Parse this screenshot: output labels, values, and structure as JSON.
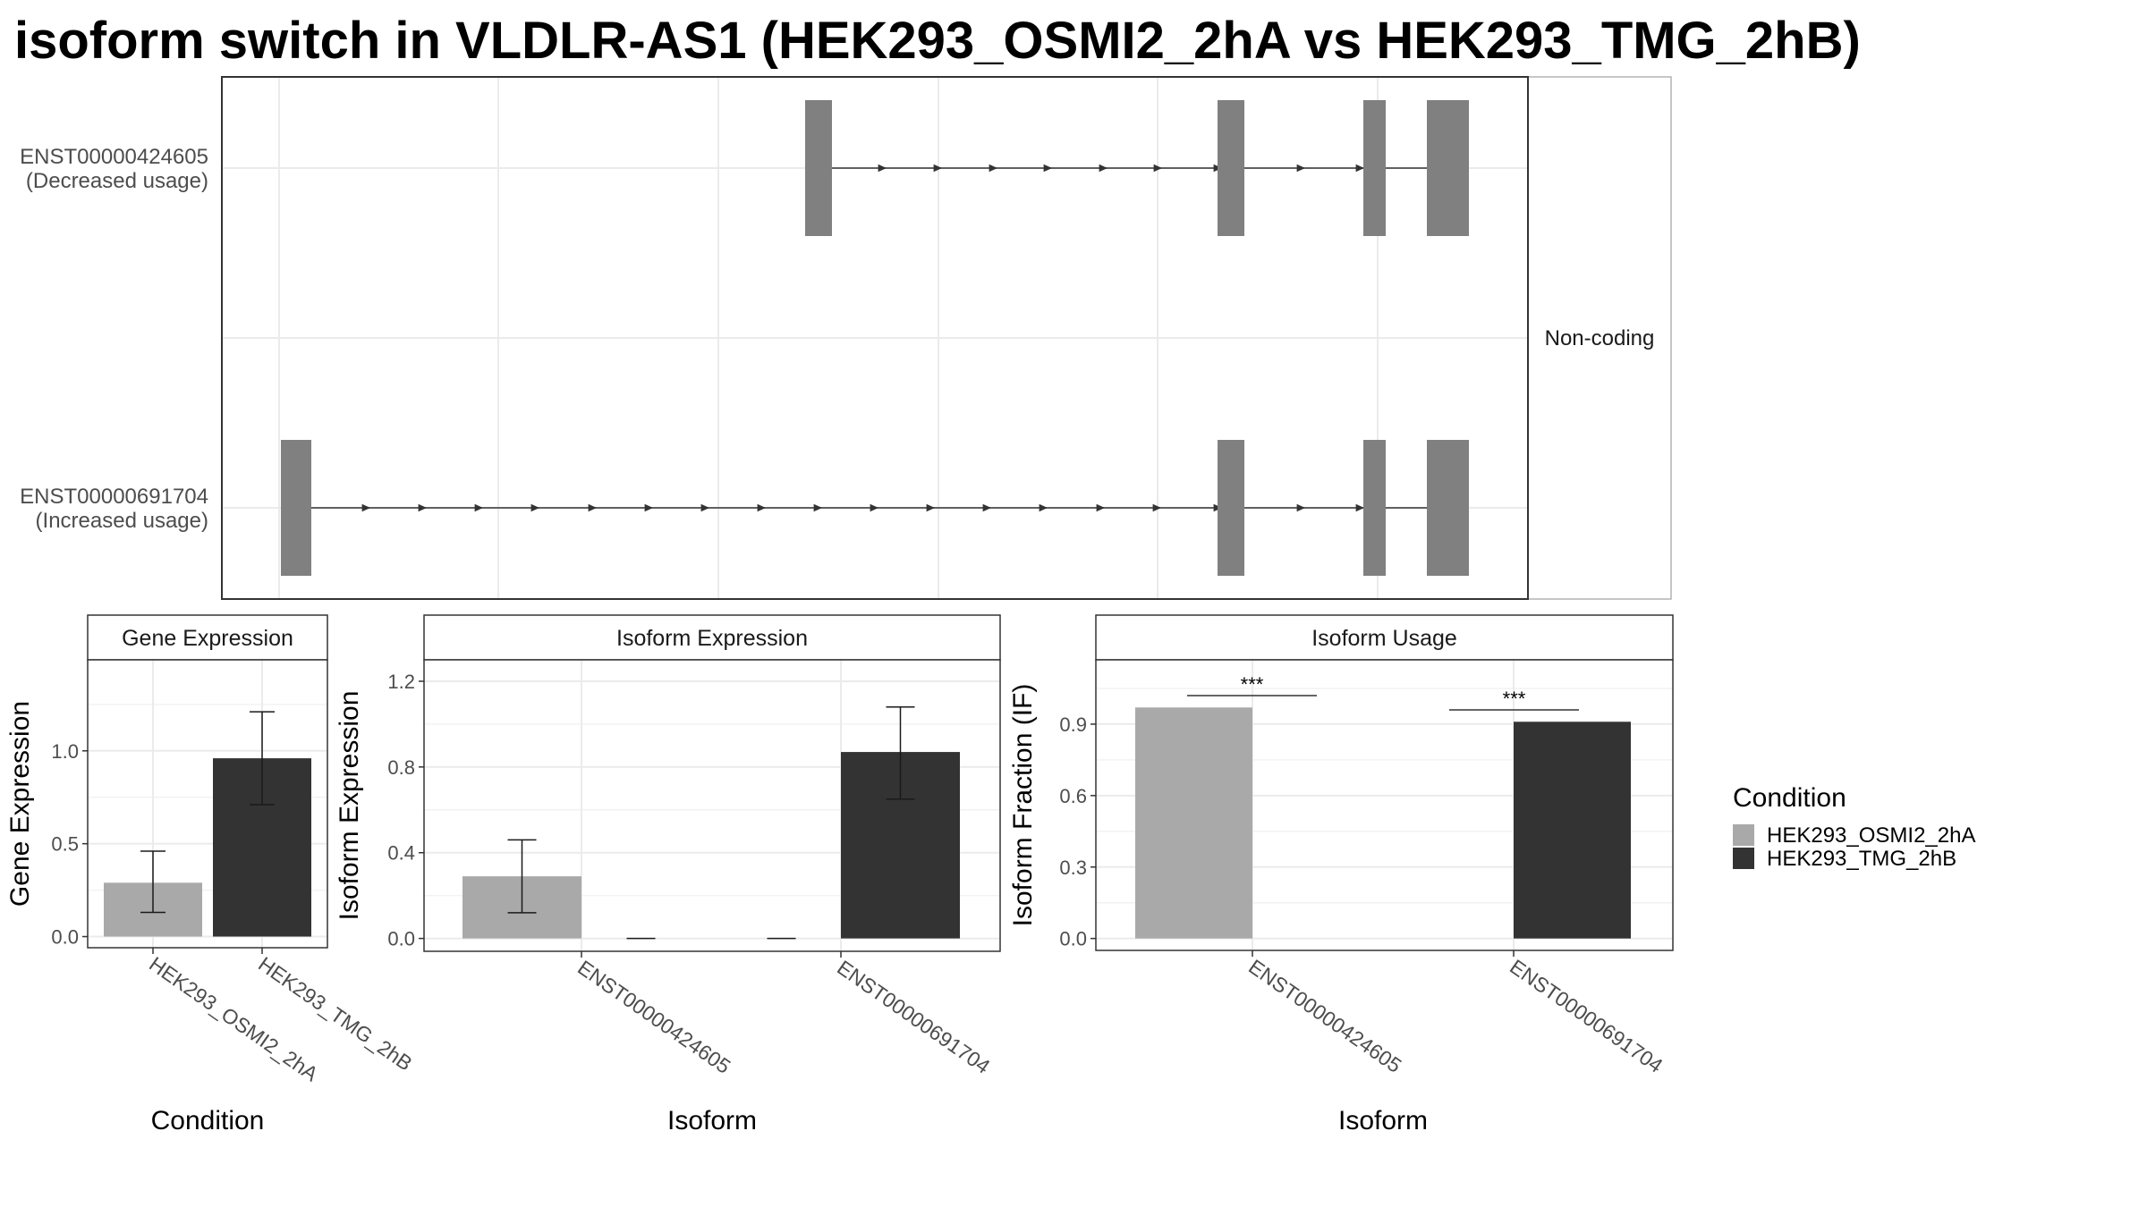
{
  "title": "isoform switch in VLDLR-AS1 (HEK293_OSMI2_2hA vs HEK293_TMG_2hB)",
  "colors": {
    "cond_a": "#a9a9a9",
    "cond_b": "#333333",
    "exon": "#808080",
    "grid": "#ebebeb",
    "strip": "#ffffff"
  },
  "structure": {
    "facet_label": "Non-coding",
    "isoforms": [
      {
        "id": "ENST00000424605",
        "note": "(Decreased usage)"
      },
      {
        "id": "ENST00000691704",
        "note": "(Increased usage)"
      }
    ]
  },
  "legend": {
    "title": "Condition",
    "items": [
      {
        "label": "HEK293_OSMI2_2hA",
        "color": "#a9a9a9"
      },
      {
        "label": "HEK293_TMG_2hB",
        "color": "#333333"
      }
    ]
  },
  "chart_data": [
    {
      "type": "bar",
      "title": "Gene Expression",
      "xlabel": "Condition",
      "ylabel": "Gene Expression",
      "categories": [
        "HEK293_OSMI2_2hA",
        "HEK293_TMG_2hB"
      ],
      "values": [
        0.29,
        0.96
      ],
      "errors": [
        [
          0.13,
          0.46
        ],
        [
          0.71,
          1.21
        ]
      ],
      "ylim": [
        -0.06,
        1.49
      ],
      "yticks": [
        "0.0",
        "0.5",
        "1.0"
      ],
      "grid": true
    },
    {
      "type": "bar",
      "title": "Isoform Expression",
      "xlabel": "Isoform",
      "ylabel": "Isoform Expression",
      "categories": [
        "ENST00000424605",
        "ENST00000691704"
      ],
      "series": [
        {
          "name": "HEK293_OSMI2_2hA",
          "values": [
            0.29,
            0.0
          ],
          "errors": [
            [
              0.12,
              0.46
            ],
            [
              0.0,
              0.0
            ]
          ]
        },
        {
          "name": "HEK293_TMG_2hB",
          "values": [
            0.0,
            0.87
          ],
          "errors": [
            [
              0.0,
              0.0
            ],
            [
              0.65,
              1.08
            ]
          ]
        }
      ],
      "ylim": [
        -0.06,
        1.3
      ],
      "yticks": [
        "0.0",
        "0.4",
        "0.8",
        "1.2"
      ],
      "grid": true
    },
    {
      "type": "bar",
      "title": "Isoform Usage",
      "xlabel": "Isoform",
      "ylabel": "Isoform Fraction (IF)",
      "categories": [
        "ENST00000424605",
        "ENST00000691704"
      ],
      "series": [
        {
          "name": "HEK293_OSMI2_2hA",
          "values": [
            0.97,
            0.0
          ]
        },
        {
          "name": "HEK293_TMG_2hB",
          "values": [
            0.0,
            0.91
          ]
        }
      ],
      "significance": [
        "***",
        "***"
      ],
      "ylim": [
        -0.05,
        1.17
      ],
      "yticks": [
        "0.0",
        "0.3",
        "0.6",
        "0.9"
      ],
      "grid": true
    }
  ]
}
